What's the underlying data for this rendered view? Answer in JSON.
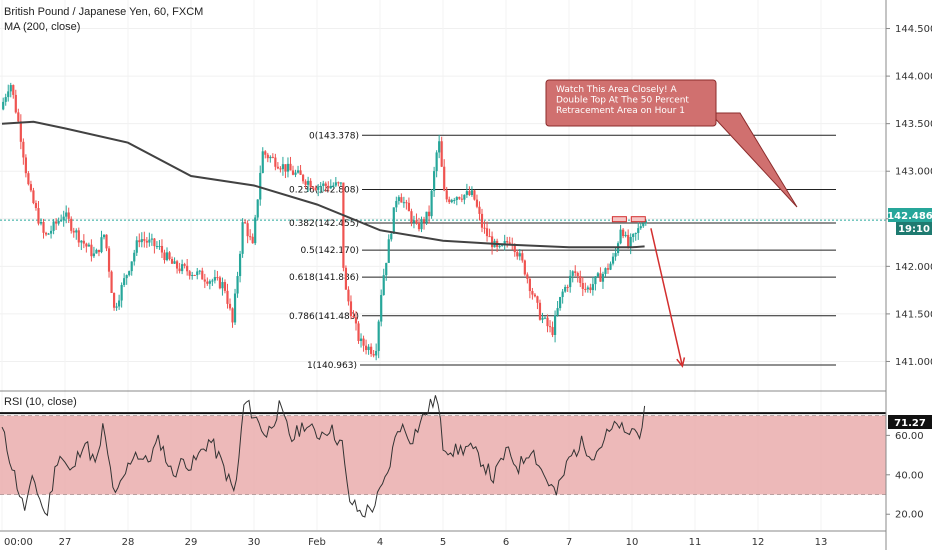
{
  "header": {
    "symbol": "British Pound / Japanese Yen, 60, FXCM",
    "indicator": "MA (200, close)"
  },
  "rsi_header": "RSI (10, close)",
  "price_tag": "142.486",
  "countdown": "19:10",
  "rsi_tag": "71.27",
  "annotation": {
    "lines": [
      "Watch This Area Closely! A",
      "Double Top At The 50 Percent",
      "Retracement Area on Hour 1"
    ]
  },
  "colors": {
    "up": "#26a69a",
    "down": "#ef5350",
    "ma": "#424242",
    "rsi_band": "#e8a7a7",
    "rsi_line": "#333333",
    "price_tag": "#26a69a",
    "note_bg": "#d0706f",
    "arrow": "#d32f2f"
  },
  "chart_data": [
    {
      "type": "candlestick",
      "title": "British Pound / Japanese Yen, 60, FXCM",
      "x_tick_labels": [
        "00:00",
        "27",
        "28",
        "29",
        "30",
        "Feb",
        "4",
        "5",
        "6",
        "7",
        "10",
        "11",
        "12",
        "13"
      ],
      "ylim": [
        140.7,
        144.8
      ],
      "y_ticks": [
        141.0,
        141.5,
        142.0,
        142.5,
        143.0,
        143.5,
        144.0,
        144.5
      ],
      "y_tick_labels": [
        "141.000",
        "141.500",
        "142.000",
        "142.500",
        "143.000",
        "143.500",
        "144.000",
        "144.500"
      ],
      "last_price": 142.486,
      "price_path": [
        {
          "t": 0,
          "p": 143.65
        },
        {
          "t": 0.15,
          "p": 143.95
        },
        {
          "t": 0.3,
          "p": 143.45
        },
        {
          "t": 0.45,
          "p": 142.8
        },
        {
          "t": 0.7,
          "p": 142.3
        },
        {
          "t": 1.0,
          "p": 142.55
        },
        {
          "t": 1.25,
          "p": 142.3
        },
        {
          "t": 1.5,
          "p": 142.1
        },
        {
          "t": 1.65,
          "p": 142.35
        },
        {
          "t": 1.8,
          "p": 141.55
        },
        {
          "t": 2.2,
          "p": 142.3
        },
        {
          "t": 2.5,
          "p": 142.2
        },
        {
          "t": 2.75,
          "p": 142.0
        },
        {
          "t": 3.0,
          "p": 141.95
        },
        {
          "t": 3.55,
          "p": 141.8
        },
        {
          "t": 3.68,
          "p": 141.4
        },
        {
          "t": 3.85,
          "p": 142.5
        },
        {
          "t": 4.0,
          "p": 142.2
        },
        {
          "t": 4.15,
          "p": 143.2
        },
        {
          "t": 4.6,
          "p": 143.0
        },
        {
          "t": 5.0,
          "p": 142.85
        },
        {
          "t": 5.4,
          "p": 142.85
        },
        {
          "t": 5.45,
          "p": 141.8
        },
        {
          "t": 5.7,
          "p": 141.2
        },
        {
          "t": 5.95,
          "p": 141.1
        },
        {
          "t": 6.05,
          "p": 141.8
        },
        {
          "t": 6.3,
          "p": 142.8
        },
        {
          "t": 6.6,
          "p": 142.4
        },
        {
          "t": 6.8,
          "p": 142.55
        },
        {
          "t": 6.95,
          "p": 143.35
        },
        {
          "t": 7.05,
          "p": 142.7
        },
        {
          "t": 7.25,
          "p": 142.75
        },
        {
          "t": 7.5,
          "p": 142.75
        },
        {
          "t": 7.65,
          "p": 142.4
        },
        {
          "t": 7.9,
          "p": 142.15
        },
        {
          "t": 8.1,
          "p": 142.3
        },
        {
          "t": 8.3,
          "p": 142.0
        },
        {
          "t": 8.55,
          "p": 141.5
        },
        {
          "t": 8.75,
          "p": 141.3
        },
        {
          "t": 8.9,
          "p": 141.7
        },
        {
          "t": 9.1,
          "p": 141.95
        },
        {
          "t": 9.3,
          "p": 141.75
        },
        {
          "t": 9.6,
          "p": 141.95
        },
        {
          "t": 9.75,
          "p": 142.1
        },
        {
          "t": 9.85,
          "p": 142.45
        },
        {
          "t": 9.95,
          "p": 142.2
        },
        {
          "t": 10.1,
          "p": 142.35
        },
        {
          "t": 10.2,
          "p": 142.5
        }
      ],
      "ma200": [
        {
          "t": 0,
          "p": 143.5
        },
        {
          "t": 0.5,
          "p": 143.52
        },
        {
          "t": 1.0,
          "p": 143.45
        },
        {
          "t": 2.0,
          "p": 143.3
        },
        {
          "t": 3.0,
          "p": 142.95
        },
        {
          "t": 4.0,
          "p": 142.85
        },
        {
          "t": 5.0,
          "p": 142.65
        },
        {
          "t": 6.0,
          "p": 142.38
        },
        {
          "t": 7.0,
          "p": 142.27
        },
        {
          "t": 8.0,
          "p": 142.23
        },
        {
          "t": 9.0,
          "p": 142.2
        },
        {
          "t": 10.0,
          "p": 142.2
        },
        {
          "t": 10.2,
          "p": 142.21
        }
      ],
      "fibonacci": [
        {
          "label": "0(143.378)",
          "ratio": "0",
          "value": 143.378
        },
        {
          "label": "0.236(142.808)",
          "ratio": "0.236",
          "value": 142.808
        },
        {
          "label": "0.382(142.455)",
          "ratio": "0.382",
          "value": 142.455
        },
        {
          "label": "0.5(142.170)",
          "ratio": "0.5",
          "value": 142.17
        },
        {
          "label": "0.618(141.886)",
          "ratio": "0.618",
          "value": 141.886
        },
        {
          "label": "0.786(141.480)",
          "ratio": "0.786",
          "value": 141.48
        },
        {
          "label": "1(140.963)",
          "ratio": "1",
          "value": 140.963
        }
      ],
      "projection": {
        "from": {
          "t": 10.3,
          "p": 142.4
        },
        "to": {
          "t": 10.8,
          "p": 140.95
        }
      }
    },
    {
      "type": "line",
      "title": "RSI (10, close)",
      "ylim": [
        12,
        82
      ],
      "y_ticks": [
        20,
        40,
        60
      ],
      "y_tick_labels": [
        "20.00",
        "40.00",
        "60.00"
      ],
      "band": [
        30,
        70
      ],
      "last_value": 71.27,
      "path": [
        {
          "t": 0,
          "v": 63
        },
        {
          "t": 0.2,
          "v": 40
        },
        {
          "t": 0.35,
          "v": 22
        },
        {
          "t": 0.5,
          "v": 38
        },
        {
          "t": 0.7,
          "v": 18
        },
        {
          "t": 0.9,
          "v": 52
        },
        {
          "t": 1.1,
          "v": 40
        },
        {
          "t": 1.3,
          "v": 58
        },
        {
          "t": 1.5,
          "v": 44
        },
        {
          "t": 1.6,
          "v": 64
        },
        {
          "t": 1.8,
          "v": 28
        },
        {
          "t": 2.1,
          "v": 52
        },
        {
          "t": 2.3,
          "v": 46
        },
        {
          "t": 2.5,
          "v": 58
        },
        {
          "t": 2.7,
          "v": 40
        },
        {
          "t": 2.9,
          "v": 48
        },
        {
          "t": 3.0,
          "v": 44
        },
        {
          "t": 3.3,
          "v": 58
        },
        {
          "t": 3.5,
          "v": 45
        },
        {
          "t": 3.7,
          "v": 30
        },
        {
          "t": 3.85,
          "v": 78
        },
        {
          "t": 4.0,
          "v": 70
        },
        {
          "t": 4.2,
          "v": 60
        },
        {
          "t": 4.4,
          "v": 74
        },
        {
          "t": 4.6,
          "v": 58
        },
        {
          "t": 4.8,
          "v": 66
        },
        {
          "t": 5.0,
          "v": 60
        },
        {
          "t": 5.2,
          "v": 64
        },
        {
          "t": 5.4,
          "v": 55
        },
        {
          "t": 5.5,
          "v": 28
        },
        {
          "t": 5.7,
          "v": 20
        },
        {
          "t": 5.9,
          "v": 24
        },
        {
          "t": 6.1,
          "v": 38
        },
        {
          "t": 6.3,
          "v": 66
        },
        {
          "t": 6.5,
          "v": 58
        },
        {
          "t": 6.7,
          "v": 70
        },
        {
          "t": 6.9,
          "v": 80
        },
        {
          "t": 7.0,
          "v": 55
        },
        {
          "t": 7.2,
          "v": 52
        },
        {
          "t": 7.4,
          "v": 54
        },
        {
          "t": 7.6,
          "v": 48
        },
        {
          "t": 7.8,
          "v": 38
        },
        {
          "t": 8.0,
          "v": 52
        },
        {
          "t": 8.2,
          "v": 44
        },
        {
          "t": 8.4,
          "v": 54
        },
        {
          "t": 8.6,
          "v": 40
        },
        {
          "t": 8.8,
          "v": 30
        },
        {
          "t": 9.0,
          "v": 48
        },
        {
          "t": 9.2,
          "v": 56
        },
        {
          "t": 9.4,
          "v": 50
        },
        {
          "t": 9.6,
          "v": 60
        },
        {
          "t": 9.8,
          "v": 66
        },
        {
          "t": 9.9,
          "v": 58
        },
        {
          "t": 10.0,
          "v": 64
        },
        {
          "t": 10.1,
          "v": 60
        },
        {
          "t": 10.2,
          "v": 71
        }
      ]
    }
  ]
}
